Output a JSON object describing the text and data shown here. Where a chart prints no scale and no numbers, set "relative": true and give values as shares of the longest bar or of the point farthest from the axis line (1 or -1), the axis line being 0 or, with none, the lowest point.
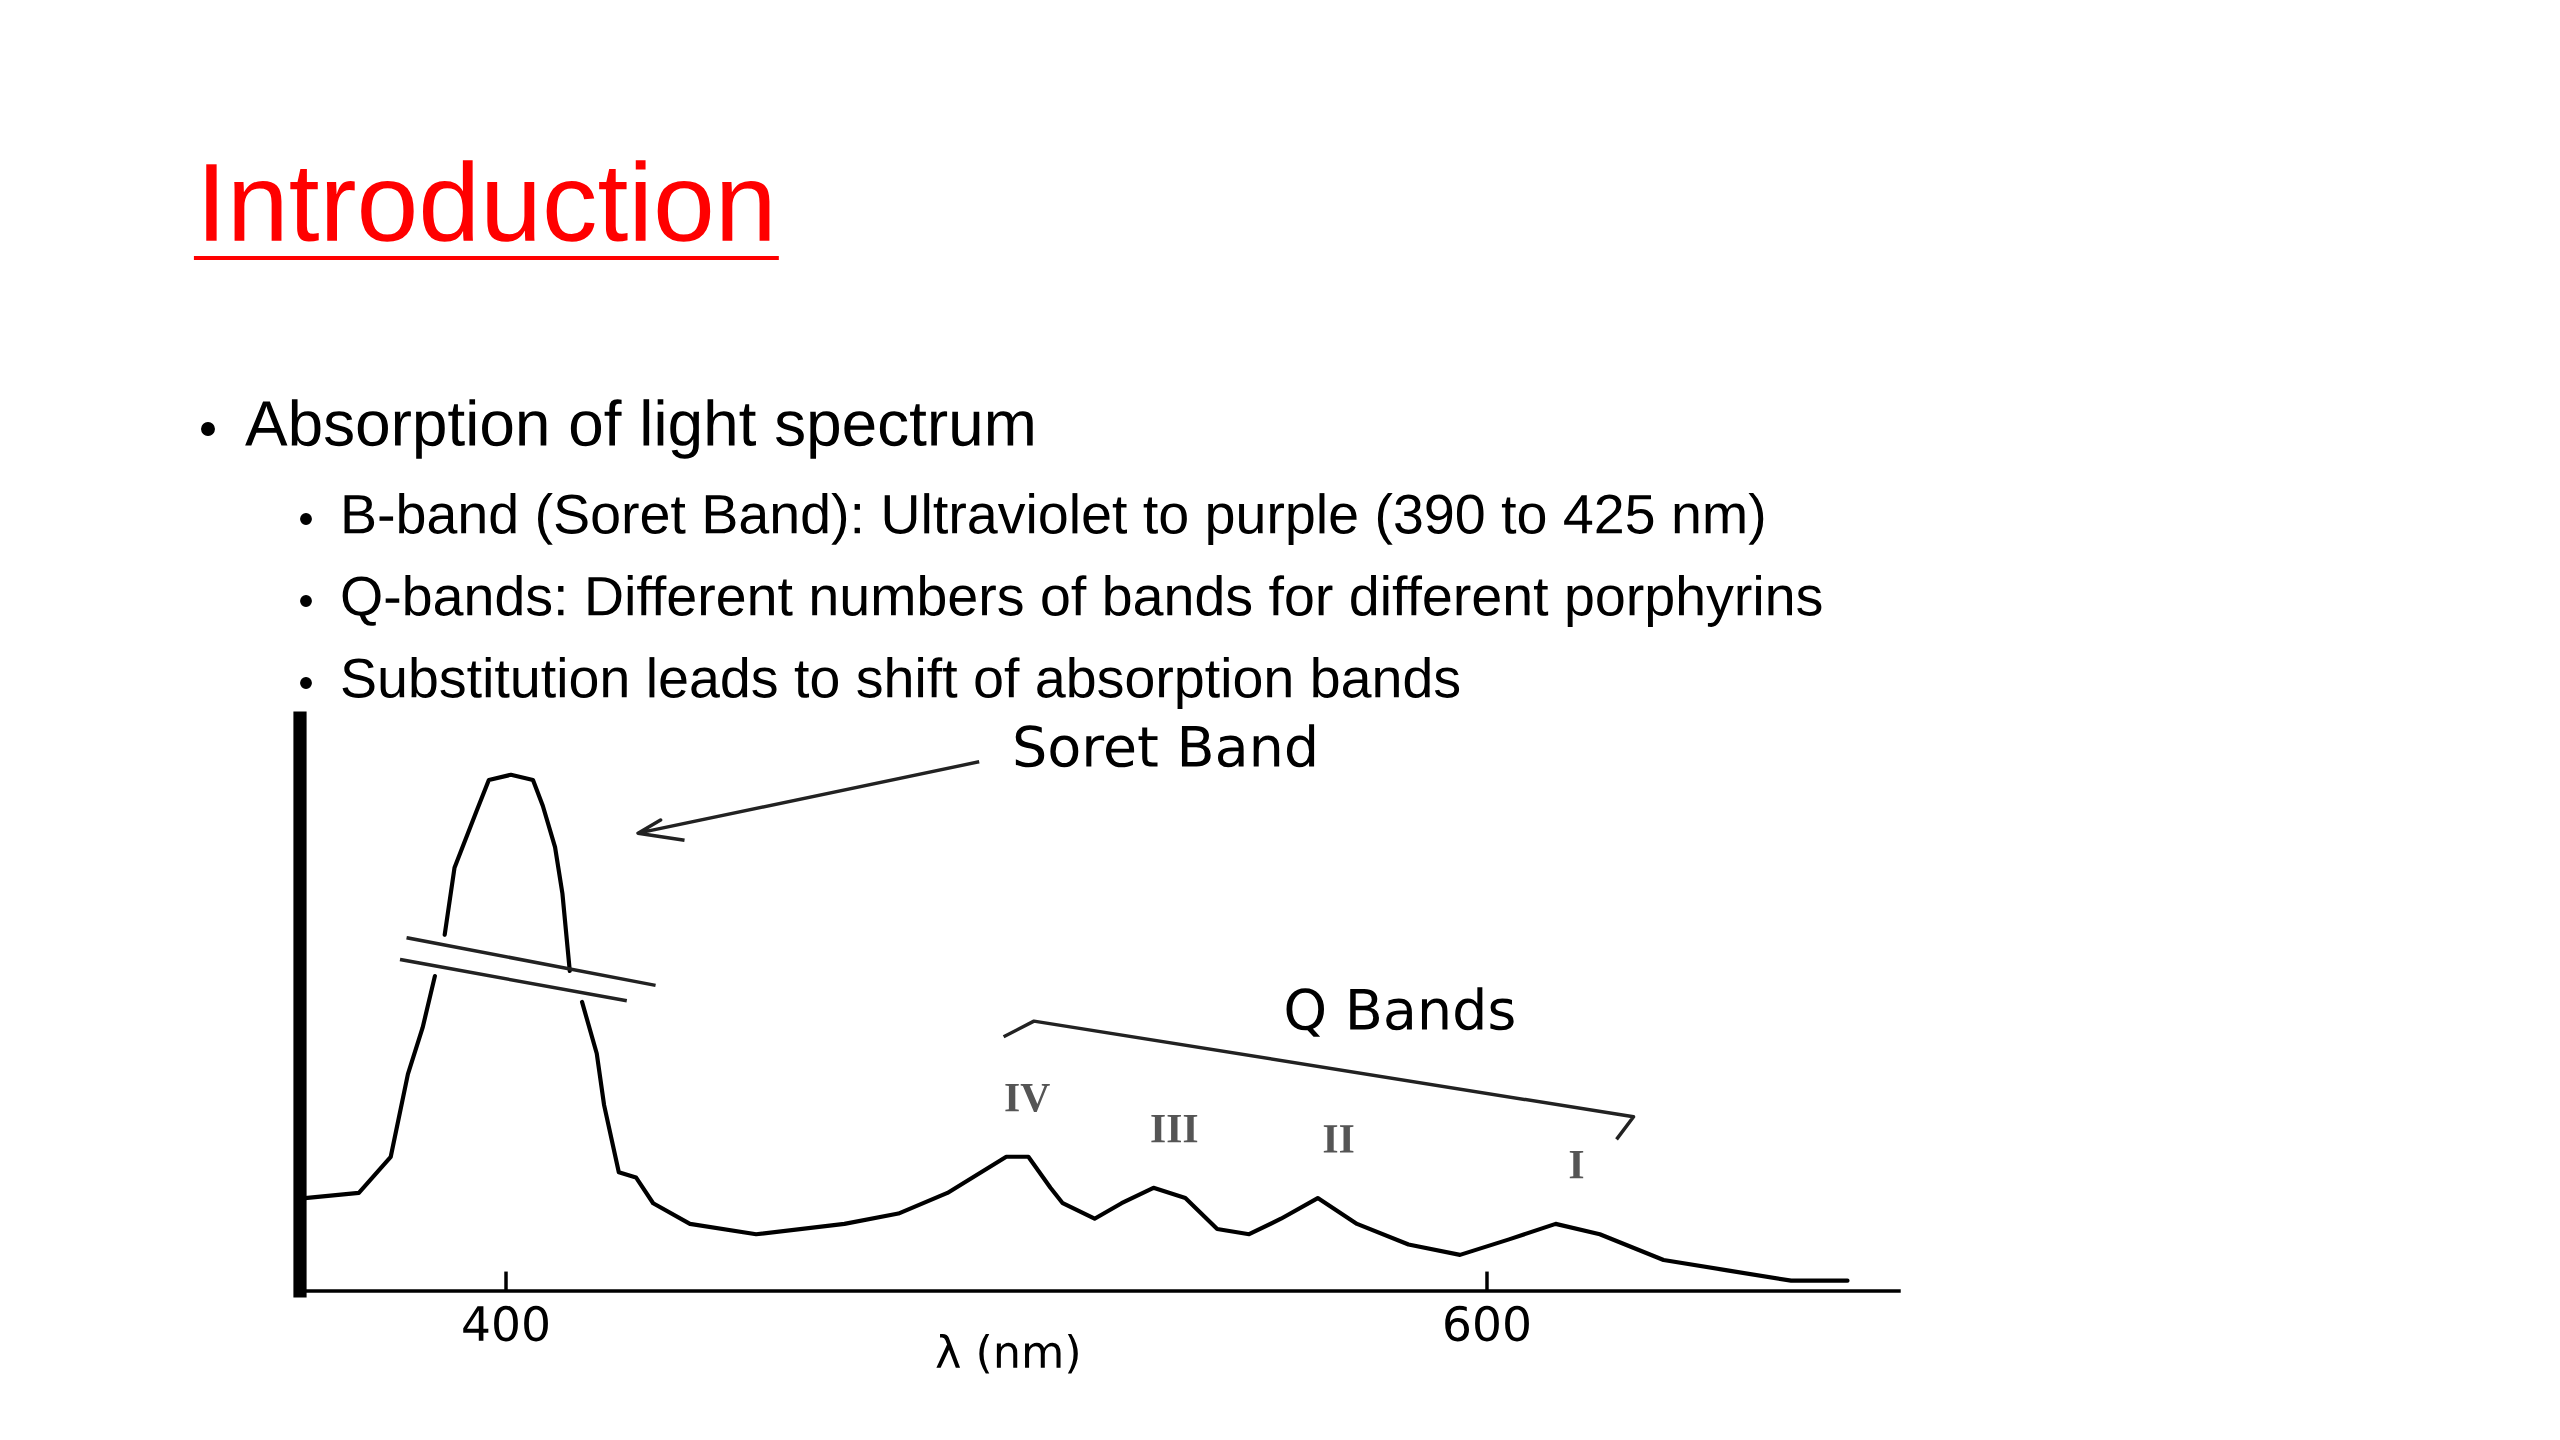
{
  "chart_data": {
    "type": "line",
    "title": "Introduction",
    "subtitle": "Absorption of light spectrum",
    "xlabel": "λ (nm)",
    "relative": true,
    "tick_labels": "x",
    "line_style": "solid",
    "x": [
      359,
      370,
      376.5,
      380,
      383,
      385.5,
      386.5,
      387.5,
      389.5,
      394,
      396.5,
      401,
      405.5,
      407.5,
      410,
      411.5,
      413,
      414,
      415.5,
      418.5,
      420,
      423,
      426.5,
      430,
      437.5,
      451,
      469,
      480,
      490,
      502,
      506.5,
      511,
      513.5,
      520,
      525.5,
      532,
      538.5,
      545,
      551.5,
      558,
      565.5,
      573.5,
      584,
      594.5,
      604.5,
      614,
      623,
      636,
      649,
      662,
      673.5
    ],
    "series": [
      {
        "color": "#000000",
        "values": [
          0.18,
          0.19,
          0.26,
          0.42,
          0.51,
          0.61,
          null,
          0.69,
          0.82,
          0.93,
          0.99,
          1.0,
          0.99,
          0.94,
          0.86,
          0.77,
          0.62,
          null,
          0.56,
          0.46,
          0.36,
          0.23,
          0.22,
          0.17,
          0.13,
          0.11,
          0.13,
          0.15,
          0.19,
          0.26,
          0.26,
          0.2,
          0.17,
          0.14,
          0.17,
          0.2,
          0.18,
          0.12,
          0.11,
          0.14,
          0.18,
          0.13,
          0.09,
          0.07,
          0.1,
          0.13,
          0.11,
          0.06,
          0.04,
          0.02,
          0.02
        ]
      }
    ],
    "xlim": [
      358,
      684
    ],
    "xticks": [
      400,
      600
    ],
    "annotations": [
      "B-band (Soret Band): Ultraviolet to purple (390 to 425 nm)",
      "Q-bands: Different numbers of bands for different porphyrins",
      "Substitution leads to shift of absorption bands",
      "Soret Band",
      "Q Bands",
      {
        "text": "IV",
        "x": 502,
        "y": 0.26
      },
      {
        "text": "III",
        "x": 532,
        "y": 0.2
      },
      {
        "text": "II",
        "x": 565.5,
        "y": 0.18
      },
      {
        "text": "I",
        "x": 614,
        "y": 0.13
      }
    ]
  }
}
